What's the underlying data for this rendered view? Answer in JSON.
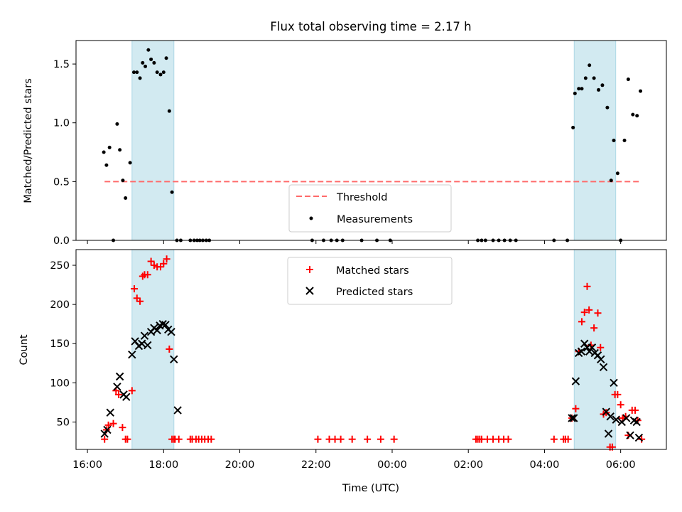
{
  "title": "Flux total observing time = 2.17 h",
  "colors": {
    "threshold": "#ff6b6b",
    "measurement": "#000000",
    "matched": "#ff0000",
    "predicted": "#000000",
    "highlight": "#add8e6"
  },
  "chart_data": [
    {
      "type": "scatter",
      "ylabel": "Matched/Predicted stars",
      "ylim": [
        0,
        1.7
      ],
      "yticks": [
        0,
        0.5,
        1.0,
        1.5
      ],
      "ytick_labels": [
        "0.0",
        "0.5",
        "1.0",
        "1.5"
      ],
      "xlim_hours": [
        15.7,
        31.2
      ],
      "highlight_spans_hours": [
        [
          17.17,
          18.27
        ],
        [
          28.78,
          29.87
        ]
      ],
      "legend_position": "lower center",
      "threshold": {
        "name": "Threshold",
        "value": 0.5,
        "x_range_hours": [
          16.45,
          30.55
        ]
      },
      "series": [
        {
          "name": "Measurements",
          "x": [
            16.43,
            16.5,
            16.58,
            16.68,
            16.78,
            16.85,
            16.93,
            17.0,
            17.12,
            17.22,
            17.3,
            17.38,
            17.45,
            17.52,
            17.6,
            17.67,
            17.75,
            17.83,
            17.92,
            18.0,
            18.07,
            18.15,
            18.22,
            18.35,
            18.45,
            18.7,
            18.8,
            18.88,
            18.95,
            19.03,
            19.12,
            19.2,
            21.9,
            22.2,
            22.4,
            22.55,
            22.7,
            23.2,
            23.6,
            23.95,
            26.25,
            26.35,
            26.45,
            26.65,
            26.8,
            26.95,
            27.1,
            27.25,
            28.25,
            28.6,
            28.75,
            28.8,
            28.9,
            28.98,
            29.08,
            29.18,
            29.3,
            29.42,
            29.52,
            29.65,
            29.75,
            29.82,
            29.92,
            30.0,
            30.1,
            30.2,
            30.32,
            30.43,
            30.52
          ],
          "y": [
            0.75,
            0.64,
            0.79,
            0.0,
            0.99,
            0.77,
            0.51,
            0.36,
            0.66,
            1.43,
            1.43,
            1.38,
            1.51,
            1.48,
            1.62,
            1.54,
            1.51,
            1.43,
            1.41,
            1.43,
            1.55,
            1.1,
            0.41,
            0.0,
            0.0,
            0.0,
            0.0,
            0.0,
            0.0,
            0.0,
            0.0,
            0.0,
            0.0,
            0.0,
            0.0,
            0.0,
            0.0,
            0.0,
            0.0,
            0.0,
            0.0,
            0.0,
            0.0,
            0.0,
            0.0,
            0.0,
            0.0,
            0.0,
            0.0,
            0.0,
            0.96,
            1.25,
            1.29,
            1.29,
            1.38,
            1.49,
            1.38,
            1.28,
            1.32,
            1.13,
            0.51,
            0.85,
            0.57,
            0.0,
            0.85,
            1.37,
            1.07,
            1.06,
            1.27
          ]
        }
      ]
    },
    {
      "type": "scatter",
      "xlabel": "Time (UTC)",
      "ylabel": "Count",
      "ylim": [
        15,
        270
      ],
      "yticks": [
        50,
        100,
        150,
        200,
        250
      ],
      "ytick_labels": [
        "50",
        "100",
        "150",
        "200",
        "250"
      ],
      "xlim_hours": [
        15.7,
        31.2
      ],
      "xtick_hours": [
        16,
        18,
        20,
        22,
        24,
        26,
        28,
        30
      ],
      "xtick_labels": [
        "16:00",
        "18:00",
        "20:00",
        "22:00",
        "00:00",
        "02:00",
        "04:00",
        "06:00"
      ],
      "highlight_spans_hours": [
        [
          17.17,
          18.27
        ],
        [
          28.78,
          29.87
        ]
      ],
      "legend_position": "upper center",
      "series": [
        {
          "name": "Matched stars",
          "marker": "+",
          "x": [
            16.45,
            16.5,
            16.55,
            16.68,
            16.75,
            16.82,
            16.92,
            17.0,
            17.05,
            17.17,
            17.23,
            17.3,
            17.38,
            17.45,
            17.5,
            17.58,
            17.67,
            17.75,
            17.83,
            17.92,
            18.0,
            18.08,
            18.15,
            18.22,
            18.27,
            18.3,
            18.4,
            18.7,
            18.75,
            18.85,
            18.92,
            19.0,
            19.08,
            19.17,
            19.25,
            22.05,
            22.35,
            22.5,
            22.65,
            22.95,
            23.35,
            23.7,
            24.05,
            26.2,
            26.25,
            26.3,
            26.35,
            26.5,
            26.65,
            26.8,
            26.93,
            27.05,
            28.25,
            28.5,
            28.55,
            28.62,
            28.72,
            28.82,
            28.9,
            28.98,
            29.05,
            29.12,
            29.17,
            29.22,
            29.3,
            29.4,
            29.47,
            29.55,
            29.62,
            29.72,
            29.78,
            29.85,
            29.92,
            30.0,
            30.05,
            30.13,
            30.2,
            30.3,
            30.38,
            30.45,
            30.55
          ],
          "y": [
            28,
            40,
            46,
            48,
            90,
            85,
            43,
            28,
            28,
            90,
            220,
            208,
            204,
            236,
            238,
            238,
            255,
            250,
            248,
            248,
            252,
            258,
            143,
            28,
            28,
            28,
            28,
            28,
            28,
            28,
            28,
            28,
            28,
            28,
            28,
            28,
            28,
            28,
            28,
            28,
            28,
            28,
            28,
            28,
            28,
            28,
            28,
            28,
            28,
            28,
            28,
            28,
            28,
            28,
            28,
            28,
            55,
            67,
            140,
            178,
            190,
            223,
            193,
            148,
            170,
            189,
            145,
            60,
            62,
            18,
            18,
            85,
            85,
            72,
            55,
            57,
            33,
            65,
            65,
            52,
            28
          ]
        },
        {
          "name": "Predicted stars",
          "marker": "x",
          "x": [
            16.45,
            16.52,
            16.6,
            16.78,
            16.85,
            16.95,
            17.02,
            17.17,
            17.25,
            17.35,
            17.43,
            17.5,
            17.58,
            17.67,
            17.75,
            17.83,
            17.9,
            17.98,
            18.05,
            18.12,
            18.2,
            18.27,
            18.37,
            28.72,
            28.77,
            28.82,
            28.9,
            28.97,
            29.05,
            29.12,
            29.18,
            29.25,
            29.32,
            29.4,
            29.48,
            29.55,
            29.62,
            29.68,
            29.73,
            29.82,
            29.88,
            30.03,
            30.15,
            30.25,
            30.35,
            30.42,
            30.48
          ],
          "y": [
            35,
            40,
            62,
            95,
            108,
            85,
            82,
            136,
            153,
            147,
            150,
            160,
            148,
            165,
            170,
            167,
            173,
            175,
            174,
            168,
            165,
            130,
            65,
            55,
            55,
            102,
            138,
            140,
            150,
            145,
            140,
            145,
            138,
            135,
            130,
            120,
            63,
            35,
            57,
            100,
            53,
            50,
            55,
            33,
            52,
            50,
            30
          ]
        }
      ]
    }
  ]
}
